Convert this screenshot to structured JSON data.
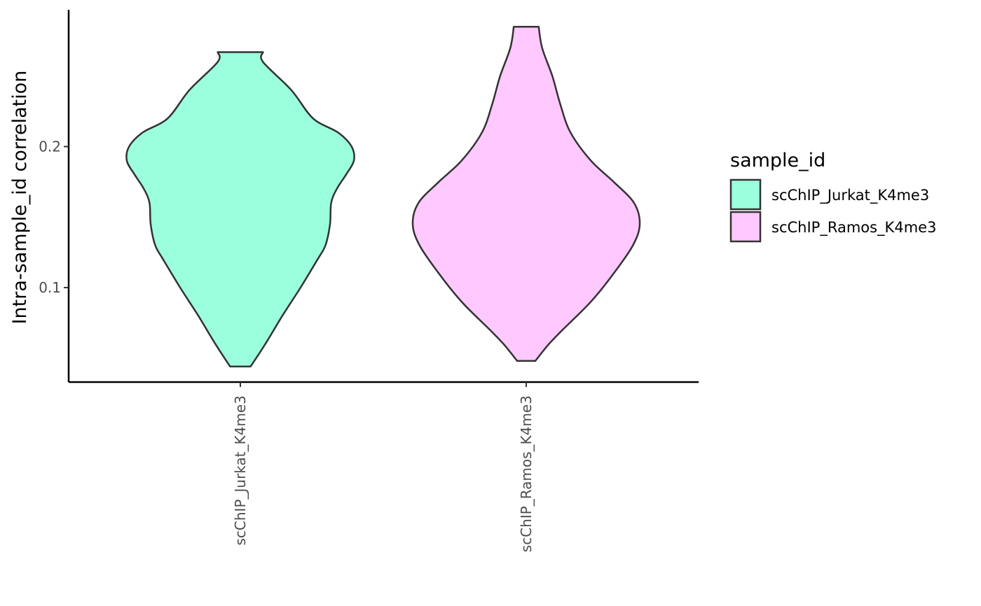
{
  "chart_data": {
    "type": "violin",
    "title": "",
    "xlabel": "",
    "ylabel": "Intra-sample_id correlation",
    "ylim": [
      0.033,
      0.297
    ],
    "y_ticks": [
      0.1,
      0.2
    ],
    "y_tick_labels": [
      "0.1",
      "0.2"
    ],
    "categories": [
      "scChIP_Jurkat_K4me3",
      "scChIP_Ramos_K4me3"
    ],
    "grid": false,
    "legend": {
      "title": "sample_id",
      "placement": "right",
      "entries": [
        {
          "label": "scChIP_Jurkat_K4me3",
          "color": "#9BFFDD"
        },
        {
          "label": "scChIP_Ramos_K4me3",
          "color": "#FFC8FF"
        }
      ]
    },
    "series": [
      {
        "category": "scChIP_Jurkat_K4me3",
        "color": "#9BFFDD",
        "min": 0.044,
        "max": 0.267,
        "density_profile": [
          {
            "y": 0.044,
            "half_width": 0.09
          },
          {
            "y": 0.06,
            "half_width": 0.22
          },
          {
            "y": 0.08,
            "half_width": 0.37
          },
          {
            "y": 0.1,
            "half_width": 0.53
          },
          {
            "y": 0.12,
            "half_width": 0.68
          },
          {
            "y": 0.13,
            "half_width": 0.75
          },
          {
            "y": 0.145,
            "half_width": 0.79
          },
          {
            "y": 0.16,
            "half_width": 0.8
          },
          {
            "y": 0.17,
            "half_width": 0.85
          },
          {
            "y": 0.18,
            "half_width": 0.93
          },
          {
            "y": 0.19,
            "half_width": 1.0
          },
          {
            "y": 0.2,
            "half_width": 0.98
          },
          {
            "y": 0.21,
            "half_width": 0.86
          },
          {
            "y": 0.22,
            "half_width": 0.64
          },
          {
            "y": 0.24,
            "half_width": 0.45
          },
          {
            "y": 0.26,
            "half_width": 0.2
          },
          {
            "y": 0.267,
            "half_width": 0.2
          }
        ]
      },
      {
        "category": "scChIP_Ramos_K4me3",
        "color": "#FFC8FF",
        "min": 0.048,
        "max": 0.285,
        "density_profile": [
          {
            "y": 0.048,
            "half_width": 0.08
          },
          {
            "y": 0.06,
            "half_width": 0.2
          },
          {
            "y": 0.07,
            "half_width": 0.32
          },
          {
            "y": 0.09,
            "half_width": 0.57
          },
          {
            "y": 0.11,
            "half_width": 0.77
          },
          {
            "y": 0.13,
            "half_width": 0.94
          },
          {
            "y": 0.145,
            "half_width": 1.0
          },
          {
            "y": 0.16,
            "half_width": 0.95
          },
          {
            "y": 0.175,
            "half_width": 0.77
          },
          {
            "y": 0.19,
            "half_width": 0.57
          },
          {
            "y": 0.21,
            "half_width": 0.39
          },
          {
            "y": 0.23,
            "half_width": 0.3
          },
          {
            "y": 0.25,
            "half_width": 0.23
          },
          {
            "y": 0.27,
            "half_width": 0.14
          },
          {
            "y": 0.285,
            "half_width": 0.11
          }
        ]
      }
    ]
  }
}
